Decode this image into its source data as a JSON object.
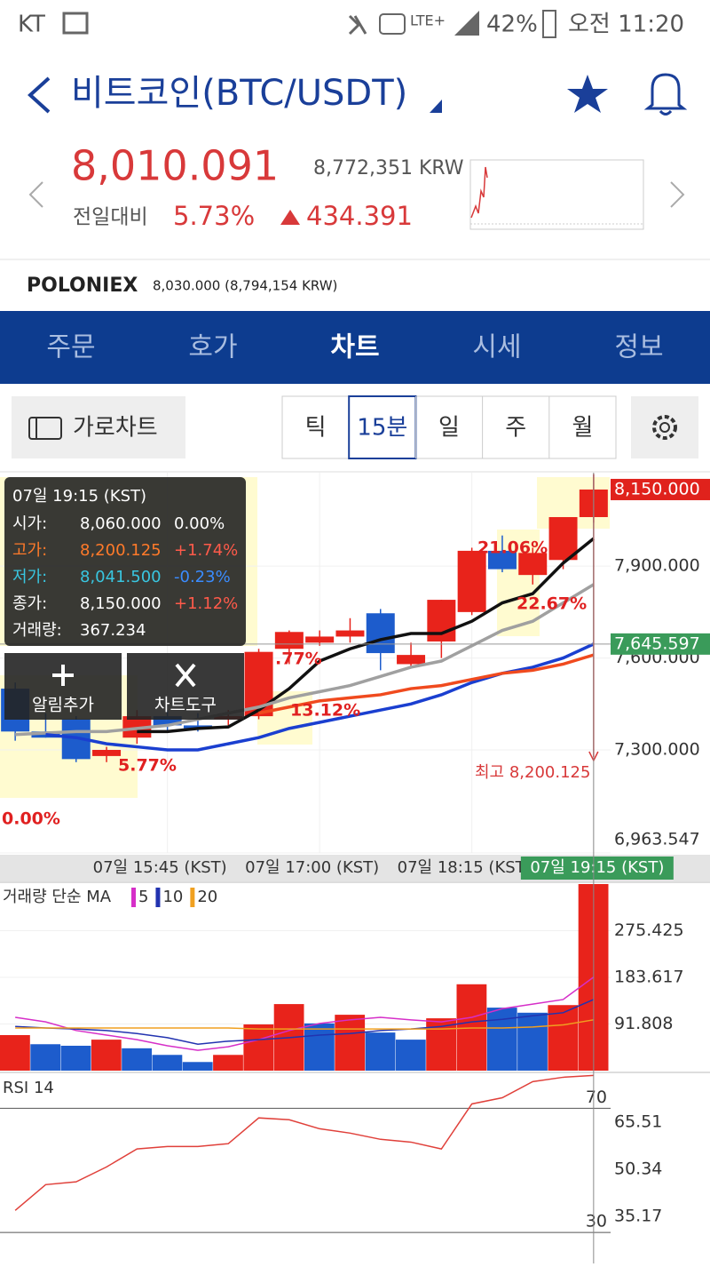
{
  "status_bar": {
    "carrier": "KT",
    "network": "LTE+",
    "battery": "42%",
    "time": "오전 11:20"
  },
  "header": {
    "title": "비트코인(BTC/USDT)"
  },
  "price": {
    "last": "8,010.091",
    "krw": "8,772,351 KRW",
    "change_label": "전일대비",
    "change_pct": "5.73%",
    "change_abs": "434.391"
  },
  "exchange": {
    "name": "POLONIEX",
    "price": "8,030.000 (8,794,154 KRW)"
  },
  "tabs": {
    "items": [
      "주문",
      "호가",
      "차트",
      "시세",
      "정보"
    ],
    "active": 2
  },
  "toolbar": {
    "landscape": "가로차트",
    "intervals": [
      "틱",
      "15분",
      "일",
      "주",
      "월"
    ],
    "active": 1
  },
  "popup": {
    "time": "07일 19:15 (KST)",
    "rows": [
      {
        "label": "시가:",
        "value": "8,060.000",
        "change": "0.00%"
      },
      {
        "label": "고가:",
        "value": "8,200.125",
        "change": "+1.74%"
      },
      {
        "label": "저가:",
        "value": "8,041.500",
        "change": "-0.23%"
      },
      {
        "label": "종가:",
        "value": "8,150.000",
        "change": "+1.12%"
      }
    ],
    "volume_label": "거래량:",
    "volume": "367.234"
  },
  "buttons": [
    "알림추가",
    "차트도구"
  ],
  "chart_data": [
    {
      "type": "candlestick",
      "categories": [
        null,
        null,
        null,
        null,
        null,
        "07일 15:45 (KST)",
        null,
        null,
        null,
        null,
        "07일 17:00 (KST)",
        null,
        null,
        null,
        null,
        "07일 18:15 (KST)",
        null,
        null,
        null,
        "07일 19:15 (KST)"
      ],
      "open": [
        7500,
        7360,
        7400,
        7280,
        7340,
        7410,
        7380,
        7400,
        7410,
        7630,
        7650,
        7670,
        7746,
        7580,
        7654,
        7750,
        7950,
        7871,
        7920,
        8060
      ],
      "high": [
        7520,
        7420,
        7410,
        7310,
        7430,
        7430,
        7420,
        7430,
        7630,
        7690,
        7690,
        7730,
        7760,
        7650,
        7790,
        7960,
        8000,
        7960,
        8060,
        8200.125
      ],
      "low": [
        7330,
        7340,
        7260,
        7260,
        7320,
        7360,
        7360,
        7380,
        7400,
        7580,
        7640,
        7650,
        7560,
        7570,
        7600,
        7740,
        7880,
        7840,
        7890,
        8041.5
      ],
      "close": [
        7360,
        7340,
        7270,
        7300,
        7410,
        7380,
        7370,
        7410,
        7620,
        7685,
        7670,
        7690,
        7616,
        7610,
        7790,
        7950,
        7890,
        7943,
        8060,
        8150
      ],
      "up_color": "#e8231b",
      "down_color": "#1d5ccc",
      "lines": [
        {
          "color": "#111111",
          "values": [
            null,
            null,
            null,
            null,
            7360,
            7360,
            7370,
            7375,
            7430,
            7500,
            7590,
            7630,
            7660,
            7680,
            7680,
            7720,
            7780,
            7810,
            7910,
            7990
          ]
        },
        {
          "color": "#a0a0a0",
          "values": [
            7350,
            7355,
            7360,
            7360,
            7370,
            7380,
            7400,
            7420,
            7440,
            7470,
            7490,
            7510,
            7540,
            7570,
            7590,
            7640,
            7690,
            7720,
            7780,
            7840
          ]
        },
        {
          "color": "#1a3fd0",
          "values": [
            null,
            7350,
            7340,
            7320,
            7310,
            7300,
            7300,
            7320,
            7340,
            7370,
            7390,
            7410,
            7430,
            7450,
            7480,
            7520,
            7550,
            7570,
            7600,
            7645.597
          ]
        },
        {
          "color": "#f04a1e",
          "values": [
            null,
            null,
            null,
            null,
            null,
            null,
            null,
            null,
            7420,
            7440,
            7460,
            7470,
            7480,
            7500,
            7510,
            7530,
            7550,
            7560,
            7580,
            7610
          ]
        }
      ],
      "ylim": [
        6963.547,
        8205
      ],
      "yticks": [
        {
          "value": 6963.547,
          "label": "6,963.547"
        },
        {
          "value": 7300,
          "label": "7,300.000"
        },
        {
          "value": 7600,
          "label": "7,600.000"
        },
        {
          "value": 7900,
          "label": "7,900.000"
        }
      ],
      "last_label": "8,150.000",
      "ma_label": "7,645.597",
      "high_label": "최고 8,200.125",
      "annotations": [
        "21.06%",
        "22.67%",
        "13.12%",
        ".77%",
        "5.77%",
        "0.00%"
      ],
      "grid": true
    },
    {
      "type": "bar",
      "title": "거래량 단순 MA",
      "values": [
        70,
        52,
        49,
        61,
        44,
        31,
        17,
        31,
        91,
        131,
        93,
        110,
        75,
        61,
        103,
        170,
        124,
        114,
        129,
        367.234
      ],
      "colors": [
        "#e8231b",
        "#1d5ccc",
        "#1d5ccc",
        "#e8231b",
        "#1d5ccc",
        "#1d5ccc",
        "#1d5ccc",
        "#e8231b",
        "#e8231b",
        "#e8231b",
        "#1d5ccc",
        "#e8231b",
        "#1d5ccc",
        "#1d5ccc",
        "#e8231b",
        "#e8231b",
        "#1d5ccc",
        "#1d5ccc",
        "#e8231b",
        "#e8231b"
      ],
      "series": [
        {
          "name": "5",
          "color": "#d62fc8",
          "values": [
            105,
            96,
            79,
            70,
            61,
            49,
            40,
            47,
            61,
            79,
            93,
            100,
            105,
            100,
            96,
            105,
            122,
            131,
            140,
            184
          ]
        },
        {
          "name": "10",
          "color": "#2233b0",
          "values": [
            87,
            84,
            82,
            79,
            73,
            65,
            52,
            58,
            61,
            65,
            70,
            73,
            79,
            82,
            87,
            96,
            101,
            108,
            114,
            140
          ]
        },
        {
          "name": "20",
          "color": "#f0a020",
          "values": [
            84,
            84,
            84,
            84,
            84,
            84,
            84,
            84,
            82,
            82,
            82,
            82,
            82,
            82,
            82,
            84,
            84,
            86,
            90,
            100
          ]
        }
      ],
      "ylim": [
        0,
        367.234
      ],
      "yticks": [
        91.808,
        183.617,
        275.425
      ]
    },
    {
      "type": "line",
      "title": "RSI 14",
      "color": "#e0403a",
      "values": [
        37.1,
        45.4,
        46.3,
        51.1,
        56.9,
        57.7,
        57.7,
        58.6,
        66.9,
        66.3,
        63.4,
        62.0,
        60.0,
        59.1,
        56.9,
        71.4,
        73.4,
        78.6,
        80.0,
        80.6
      ],
      "levels": [
        30,
        70
      ],
      "ylim": [
        26.3,
        80.7
      ],
      "yticks": [
        35.17,
        50.34,
        65.51
      ]
    }
  ]
}
